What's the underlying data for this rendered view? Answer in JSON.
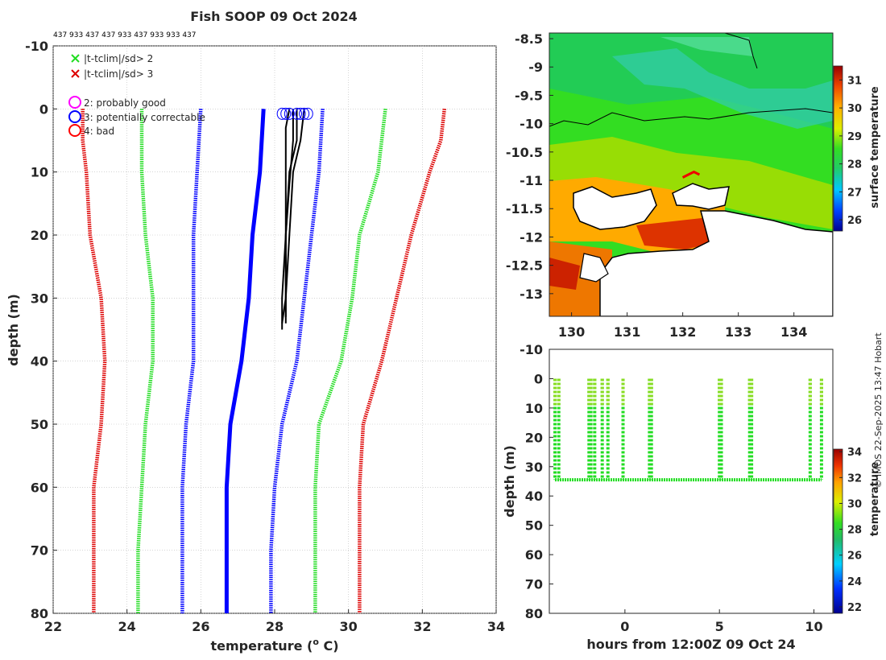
{
  "title": "Fish SOOP 09 Oct 2024",
  "platform_ids": "437 933 437 437 933 437 933 933 437",
  "credit": "© IMOS 22-Sep-2025 13:47 Hobart",
  "legend": {
    "qc_flags": [
      {
        "label": "|t-tclim|/sd> 2",
        "color": "#22dd22",
        "marker": "x"
      },
      {
        "label": "|t-tclim|/sd> 3",
        "color": "#dd0000",
        "marker": "x"
      }
    ],
    "quality": [
      {
        "label": "2: probably good",
        "color": "#ff00ff",
        "marker": "o"
      },
      {
        "label": "3: potentially correctable",
        "color": "#0000ff",
        "marker": "o"
      },
      {
        "label": "4: bad",
        "color": "#ff0000",
        "marker": "o"
      }
    ]
  },
  "chart_data": [
    {
      "type": "line",
      "title": "Fish SOOP 09 Oct 2024",
      "xlabel": "temperature (o C)",
      "ylabel": "depth (m)",
      "xlim": [
        22,
        34
      ],
      "ylim": [
        80,
        -10
      ],
      "xticks": [
        22,
        24,
        26,
        28,
        30,
        32,
        34
      ],
      "yticks": [
        -10,
        0,
        10,
        20,
        30,
        40,
        50,
        60,
        70,
        80
      ],
      "grid": true,
      "series": [
        {
          "name": "climatology -3sd",
          "color": "#dd0000",
          "depth": [
            0,
            5,
            10,
            20,
            30,
            40,
            50,
            60,
            70,
            80
          ],
          "temp": [
            22.8,
            22.8,
            22.9,
            23.0,
            23.3,
            23.4,
            23.3,
            23.1,
            23.1,
            23.1
          ]
        },
        {
          "name": "climatology -2sd",
          "color": "#22dd22",
          "depth": [
            0,
            10,
            20,
            30,
            40,
            50,
            60,
            70,
            80
          ],
          "temp": [
            24.4,
            24.4,
            24.5,
            24.7,
            24.7,
            24.5,
            24.4,
            24.3,
            24.3
          ]
        },
        {
          "name": "climatology -1sd",
          "color": "#0000ff",
          "depth": [
            0,
            10,
            20,
            30,
            40,
            50,
            60,
            70,
            80
          ],
          "temp": [
            26.0,
            25.9,
            25.8,
            25.8,
            25.8,
            25.6,
            25.5,
            25.5,
            25.5
          ]
        },
        {
          "name": "climatology mean",
          "color": "#0000ff",
          "depth": [
            0,
            10,
            20,
            30,
            40,
            50,
            60,
            70,
            80
          ],
          "temp": [
            27.7,
            27.6,
            27.4,
            27.3,
            27.1,
            26.8,
            26.7,
            26.7,
            26.7
          ]
        },
        {
          "name": "climatology +1sd",
          "color": "#0000ff",
          "depth": [
            0,
            10,
            20,
            30,
            40,
            50,
            60,
            70,
            80
          ],
          "temp": [
            29.3,
            29.2,
            29.0,
            28.8,
            28.6,
            28.2,
            28.0,
            27.9,
            27.9
          ]
        },
        {
          "name": "climatology +2sd",
          "color": "#22dd22",
          "depth": [
            0,
            10,
            20,
            30,
            40,
            50,
            60,
            70,
            80
          ],
          "temp": [
            31.0,
            30.8,
            30.3,
            30.1,
            29.8,
            29.2,
            29.1,
            29.1,
            29.1
          ]
        },
        {
          "name": "climatology +3sd",
          "color": "#dd0000",
          "depth": [
            0,
            5,
            10,
            20,
            30,
            40,
            50,
            60,
            70,
            80
          ],
          "temp": [
            32.6,
            32.5,
            32.2,
            31.7,
            31.3,
            30.9,
            30.4,
            30.3,
            30.3,
            30.3
          ]
        },
        {
          "name": "observed profile 1",
          "color": "#000000",
          "depth": [
            0,
            3,
            10,
            20,
            30,
            35
          ],
          "temp": [
            28.4,
            28.3,
            28.3,
            28.3,
            28.2,
            28.2
          ]
        },
        {
          "name": "observed profile 2",
          "color": "#000000",
          "depth": [
            0,
            5,
            10,
            20,
            30,
            34
          ],
          "temp": [
            28.6,
            28.6,
            28.4,
            28.3,
            28.3,
            28.2
          ]
        },
        {
          "name": "observed profile 3",
          "color": "#000000",
          "depth": [
            0,
            5,
            10,
            20,
            30,
            34
          ],
          "temp": [
            28.8,
            28.7,
            28.5,
            28.4,
            28.3,
            28.3
          ]
        },
        {
          "name": "observed profile 4",
          "color": "#000000",
          "depth": [
            0,
            5,
            12,
            20,
            30,
            33
          ],
          "temp": [
            28.5,
            28.5,
            28.4,
            28.3,
            28.3,
            28.3
          ]
        }
      ],
      "surface_markers": {
        "color": "#0000ff",
        "temp": [
          28.2,
          28.3,
          28.4,
          28.6,
          28.7,
          28.8,
          28.9
        ],
        "depth": 0
      }
    },
    {
      "type": "heatmap",
      "title": "",
      "xlabel": "",
      "ylabel": "",
      "xlim": [
        129.6,
        134.7
      ],
      "ylim": [
        -13.4,
        -8.4
      ],
      "xticks": [
        130,
        131,
        132,
        133,
        134
      ],
      "yticks": [
        -8.5,
        -9,
        -9.5,
        -10,
        -10.5,
        -11,
        -11.5,
        -12,
        -12.5,
        -13
      ],
      "colorbar_label": "surface temperature",
      "colorbar_ticks": [
        26,
        27,
        28,
        29,
        30,
        31
      ],
      "colorbar_range": [
        25.6,
        31.5
      ],
      "ship_track": {
        "lon": [
          132.0,
          132.1,
          132.2,
          132.3
        ],
        "lat": [
          -10.95,
          -10.9,
          -10.85,
          -10.9
        ]
      }
    },
    {
      "type": "scatter",
      "title": "",
      "xlabel": "hours from 12:00Z 09 Oct 24",
      "ylabel": "depth (m)",
      "xlim": [
        -4,
        11
      ],
      "ylim": [
        80,
        -10
      ],
      "xticks": [
        0,
        5,
        10
      ],
      "yticks": [
        -10,
        0,
        10,
        20,
        30,
        40,
        50,
        60,
        70,
        80
      ],
      "colorbar_label": "temperature",
      "colorbar_ticks": [
        22,
        24,
        26,
        28,
        30,
        32,
        34
      ],
      "colorbar_range": [
        21.5,
        34.2
      ],
      "bottom_depth": 34.5,
      "profile_hours": [
        -3.7,
        -3.5,
        -1.9,
        -1.8,
        -1.6,
        -1.2,
        -0.9,
        -0.1,
        1.3,
        1.4,
        5.0,
        5.1,
        6.6,
        6.7,
        9.8,
        10.4
      ]
    }
  ]
}
